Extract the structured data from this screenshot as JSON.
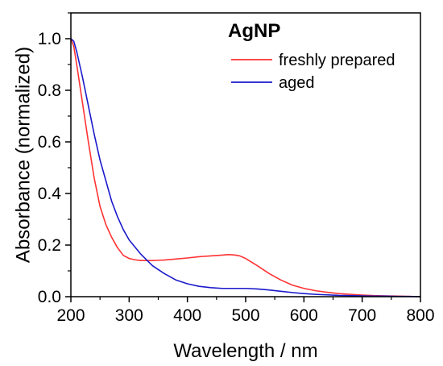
{
  "chart_data": {
    "type": "line",
    "title": "",
    "xlabel": "Wavelength / nm",
    "ylabel": "Absorbance (normalized)",
    "xlim": [
      200,
      800
    ],
    "ylim": [
      0,
      1.1
    ],
    "x_ticks": [
      200,
      300,
      400,
      500,
      600,
      700,
      800
    ],
    "y_ticks": [
      0.0,
      0.2,
      0.4,
      0.6,
      0.8,
      1.0
    ],
    "x_tick_labels": [
      "200",
      "300",
      "400",
      "500",
      "600",
      "700",
      "800"
    ],
    "y_tick_labels": [
      "0.0",
      "0.2",
      "0.4",
      "0.6",
      "0.8",
      "1.0"
    ],
    "grid": false,
    "legend_title": "AgNP",
    "legend_position": "top-right",
    "series": [
      {
        "name": "freshly prepared",
        "color": "#ff3333",
        "x": [
          200,
          205,
          210,
          220,
          230,
          240,
          250,
          260,
          270,
          280,
          290,
          300,
          310,
          320,
          330,
          340,
          350,
          360,
          380,
          400,
          420,
          440,
          460,
          470,
          480,
          490,
          500,
          520,
          540,
          560,
          580,
          600,
          620,
          640,
          660,
          680,
          700,
          720,
          740,
          760,
          780,
          800
        ],
        "y": [
          1.0,
          0.97,
          0.9,
          0.75,
          0.6,
          0.46,
          0.35,
          0.28,
          0.23,
          0.19,
          0.16,
          0.148,
          0.143,
          0.14,
          0.14,
          0.14,
          0.141,
          0.142,
          0.146,
          0.15,
          0.155,
          0.158,
          0.161,
          0.163,
          0.162,
          0.158,
          0.148,
          0.12,
          0.09,
          0.065,
          0.045,
          0.032,
          0.023,
          0.017,
          0.012,
          0.009,
          0.006,
          0.004,
          0.003,
          0.002,
          0.001,
          0.0
        ]
      },
      {
        "name": "aged",
        "color": "#1a1acc",
        "x": [
          200,
          205,
          210,
          220,
          230,
          240,
          250,
          260,
          270,
          280,
          290,
          300,
          320,
          340,
          360,
          380,
          400,
          420,
          440,
          460,
          480,
          500,
          520,
          540,
          560,
          580,
          600,
          620,
          640,
          660,
          680,
          700,
          720,
          740,
          760,
          780,
          800
        ],
        "y": [
          1.0,
          0.99,
          0.95,
          0.85,
          0.74,
          0.63,
          0.53,
          0.45,
          0.37,
          0.31,
          0.26,
          0.22,
          0.165,
          0.12,
          0.09,
          0.065,
          0.05,
          0.04,
          0.035,
          0.032,
          0.032,
          0.032,
          0.03,
          0.026,
          0.021,
          0.016,
          0.012,
          0.009,
          0.007,
          0.005,
          0.004,
          0.003,
          0.002,
          0.002,
          0.001,
          0.001,
          0.0
        ]
      }
    ]
  }
}
